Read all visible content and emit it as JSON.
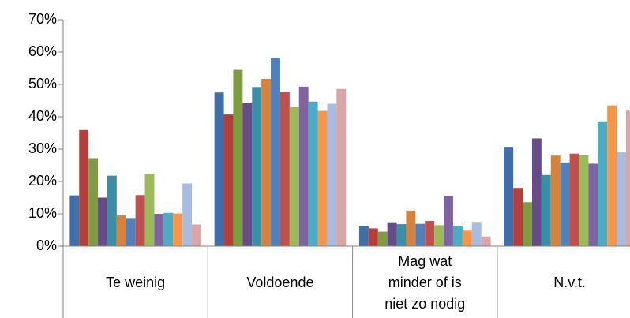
{
  "chart_data": {
    "type": "bar",
    "categories": [
      "Te weinig",
      "Voldoende",
      "Mag wat minder of is niet zo nodig",
      "N.v.t."
    ],
    "series": [
      {
        "color": "#3f6ea8",
        "values": [
          15.7,
          47.5,
          6.2,
          30.7
        ]
      },
      {
        "color": "#b53d3a",
        "values": [
          35.9,
          40.7,
          5.5,
          18.0
        ]
      },
      {
        "color": "#7f9c42",
        "values": [
          27.2,
          54.5,
          4.5,
          13.6
        ]
      },
      {
        "color": "#664c87",
        "values": [
          15.0,
          44.2,
          7.4,
          33.3
        ]
      },
      {
        "color": "#3a8fa8",
        "values": [
          21.8,
          49.2,
          6.8,
          22.0
        ]
      },
      {
        "color": "#d6823b",
        "values": [
          9.5,
          51.7,
          11.0,
          28.0
        ]
      },
      {
        "color": "#4f81bd",
        "values": [
          8.7,
          58.2,
          6.9,
          25.9
        ]
      },
      {
        "color": "#c0504d",
        "values": [
          15.8,
          47.7,
          7.8,
          28.6
        ]
      },
      {
        "color": "#9bbb59",
        "values": [
          22.3,
          43.0,
          6.5,
          28.1
        ]
      },
      {
        "color": "#8064a2",
        "values": [
          10.0,
          49.3,
          15.5,
          25.5
        ]
      },
      {
        "color": "#4bacc6",
        "values": [
          10.3,
          44.7,
          6.3,
          38.6
        ]
      },
      {
        "color": "#f79646",
        "values": [
          10.1,
          41.8,
          4.8,
          43.5
        ]
      },
      {
        "color": "#a8bbe0",
        "values": [
          19.4,
          44.0,
          7.5,
          29.0
        ]
      },
      {
        "color": "#d9a5a5",
        "values": [
          6.7,
          48.6,
          3.0,
          41.9
        ]
      }
    ],
    "ylim": [
      0,
      70
    ],
    "yticks": [
      {
        "value": 0,
        "label": "0%"
      },
      {
        "value": 10,
        "label": "10%"
      },
      {
        "value": 20,
        "label": "20%"
      },
      {
        "value": 30,
        "label": "30%"
      },
      {
        "value": 40,
        "label": "40%"
      },
      {
        "value": 50,
        "label": "50%"
      },
      {
        "value": 60,
        "label": "60%"
      },
      {
        "value": 70,
        "label": "70%"
      }
    ]
  }
}
